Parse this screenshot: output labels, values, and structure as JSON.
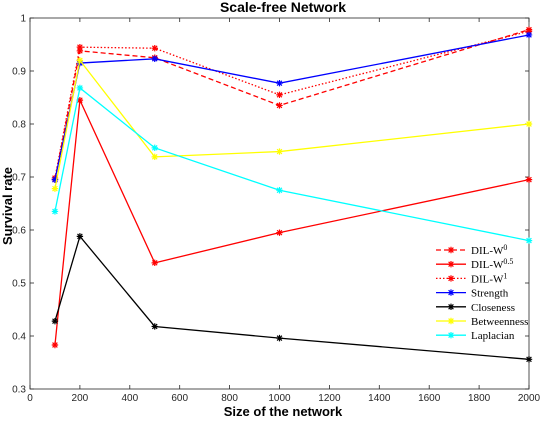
{
  "chart_data": {
    "type": "line",
    "title": "Scale-free Network",
    "xlabel": "Size of the network",
    "ylabel": "Survival rate",
    "xlim": [
      0,
      2000
    ],
    "ylim": [
      0.3,
      1.0
    ],
    "xticks": [
      0,
      200,
      400,
      600,
      800,
      1000,
      1200,
      1400,
      1600,
      1800,
      2000
    ],
    "yticks": [
      0.3,
      0.4,
      0.5,
      0.6,
      0.7,
      0.8,
      0.9,
      1.0
    ],
    "xtick_labels": [
      "0",
      "200",
      "400",
      "600",
      "800",
      "1000",
      "1200",
      "1400",
      "1600",
      "1800",
      "2000"
    ],
    "ytick_labels": [
      "0.3",
      "0.4",
      "0.5",
      "0.6",
      "0.7",
      "0.8",
      "0.9",
      "1"
    ],
    "x": [
      100,
      200,
      500,
      1000,
      2000
    ],
    "grid": false,
    "legend_position": "lower-right",
    "series": [
      {
        "name": "DIL-W",
        "sup": "0",
        "color": "#ff0000",
        "dash": "dashed",
        "marker": "star",
        "values": [
          0.695,
          0.938,
          0.925,
          0.835,
          0.978
        ]
      },
      {
        "name": "DIL-W",
        "sup": "0.5",
        "color": "#ff0000",
        "dash": "solid",
        "marker": "star",
        "values": [
          0.383,
          0.845,
          0.538,
          0.595,
          0.695
        ]
      },
      {
        "name": "DIL-W",
        "sup": "1",
        "color": "#ff0000",
        "dash": "dotted",
        "marker": "star",
        "values": [
          0.698,
          0.945,
          0.943,
          0.855,
          0.975
        ]
      },
      {
        "name": "Strength",
        "sup": "",
        "color": "#0000ff",
        "dash": "solid",
        "marker": "star",
        "values": [
          0.695,
          0.915,
          0.923,
          0.877,
          0.968
        ]
      },
      {
        "name": "Closeness",
        "sup": "",
        "color": "#000000",
        "dash": "solid",
        "marker": "star",
        "values": [
          0.428,
          0.588,
          0.418,
          0.396,
          0.356
        ]
      },
      {
        "name": "Betweenness",
        "sup": "",
        "color": "#ffff00",
        "dash": "solid",
        "marker": "star",
        "values": [
          0.678,
          0.92,
          0.738,
          0.748,
          0.8
        ]
      },
      {
        "name": "Laplacian",
        "sup": "",
        "color": "#00ffff",
        "dash": "solid",
        "marker": "star",
        "values": [
          0.635,
          0.868,
          0.755,
          0.675,
          0.58
        ]
      }
    ]
  }
}
